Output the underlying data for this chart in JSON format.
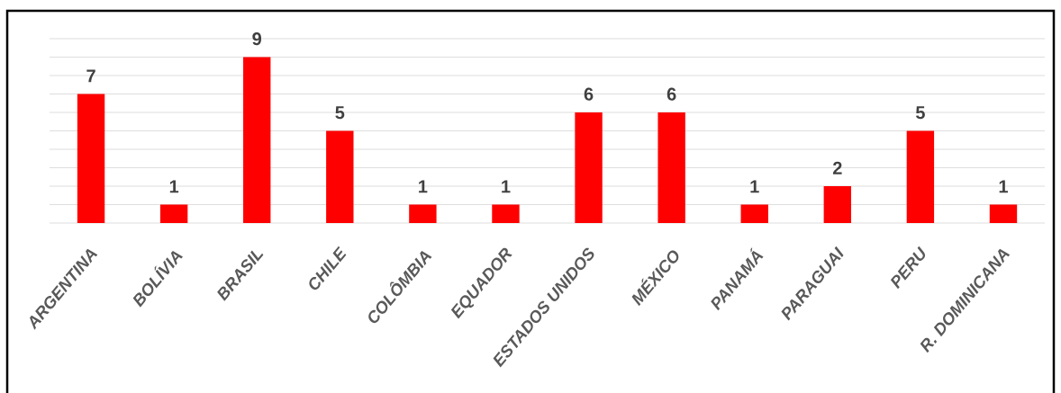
{
  "chart_data": {
    "type": "bar",
    "categories": [
      "ARGENTINA",
      "BOLÍVIA",
      "BRASIL",
      "CHILE",
      "COLÔMBIA",
      "EQUADOR",
      "ESTADOS UNIDOS",
      "MÉXICO",
      "PANAMÁ",
      "PARAGUAI",
      "PERU",
      "R. DOMINICANA"
    ],
    "values": [
      7,
      1,
      9,
      5,
      1,
      1,
      6,
      6,
      1,
      2,
      5,
      1
    ],
    "color": "#ff0000",
    "ylim": [
      0,
      10
    ],
    "yticks": [
      {
        "value": 0,
        "label": null
      },
      {
        "value": 1,
        "label": null
      },
      {
        "value": 2,
        "label": null
      },
      {
        "value": 3,
        "label": null
      },
      {
        "value": 4,
        "label": null
      },
      {
        "value": 5,
        "label": null
      },
      {
        "value": 6,
        "label": null
      },
      {
        "value": 7,
        "label": null
      },
      {
        "value": 8,
        "label": null
      },
      {
        "value": 9,
        "label": null
      },
      {
        "value": 10,
        "label": null
      }
    ],
    "grid": "y",
    "data_labels": true,
    "tick_labels": "x"
  }
}
